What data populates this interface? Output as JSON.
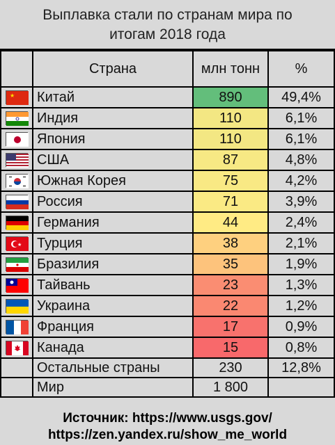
{
  "title": {
    "line1": "Выплавка стали по странам мира по",
    "line2": "итогам 2018 года"
  },
  "table": {
    "headers": {
      "country": "Страна",
      "value": "млн тонн",
      "percent": "%"
    }
  },
  "chart_data": {
    "type": "table",
    "title": "Выплавка стали по странам мира по итогам 2018 года",
    "columns": [
      "Страна",
      "млн тонн",
      "%"
    ],
    "rows": [
      {
        "country": "Китай",
        "value": "890",
        "percent": "49,4%",
        "flag": "china-flag-icon"
      },
      {
        "country": "Индия",
        "value": "110",
        "percent": "6,1%",
        "flag": "india-flag-icon"
      },
      {
        "country": "Япония",
        "value": "110",
        "percent": "6,1%",
        "flag": "japan-flag-icon"
      },
      {
        "country": "США",
        "value": "87",
        "percent": "4,8%",
        "flag": "usa-flag-icon"
      },
      {
        "country": "Южная Корея",
        "value": "75",
        "percent": "4,2%",
        "flag": "south-korea-flag-icon"
      },
      {
        "country": "Россия",
        "value": "71",
        "percent": "3,9%",
        "flag": "russia-flag-icon"
      },
      {
        "country": "Германия",
        "value": "44",
        "percent": "2,4%",
        "flag": "germany-flag-icon"
      },
      {
        "country": "Турция",
        "value": "38",
        "percent": "2,1%",
        "flag": "turkey-flag-icon"
      },
      {
        "country": "Бразилия",
        "value": "35",
        "percent": "1,9%",
        "flag": "iran-flag-icon"
      },
      {
        "country": "Тайвань",
        "value": "23",
        "percent": "1,3%",
        "flag": "taiwan-flag-icon"
      },
      {
        "country": "Украина",
        "value": "22",
        "percent": "1,2%",
        "flag": "ukraine-flag-icon"
      },
      {
        "country": "Франция",
        "value": "17",
        "percent": "0,9%",
        "flag": "france-flag-icon"
      },
      {
        "country": "Канада",
        "value": "15",
        "percent": "0,8%",
        "flag": "canada-flag-icon"
      }
    ],
    "others": {
      "country": "Остальные страны",
      "value": "230",
      "percent": "12,8%"
    },
    "world": {
      "country": "Мир",
      "value": "1 800"
    },
    "heat_colors": {
      "low": "#f8696b",
      "mid": "#ffeb84",
      "high": "#63be7b"
    }
  },
  "footer": {
    "line1": "Источник: https://www.usgs.gov/",
    "line2": "https://zen.yandex.ru/show_me_world"
  }
}
